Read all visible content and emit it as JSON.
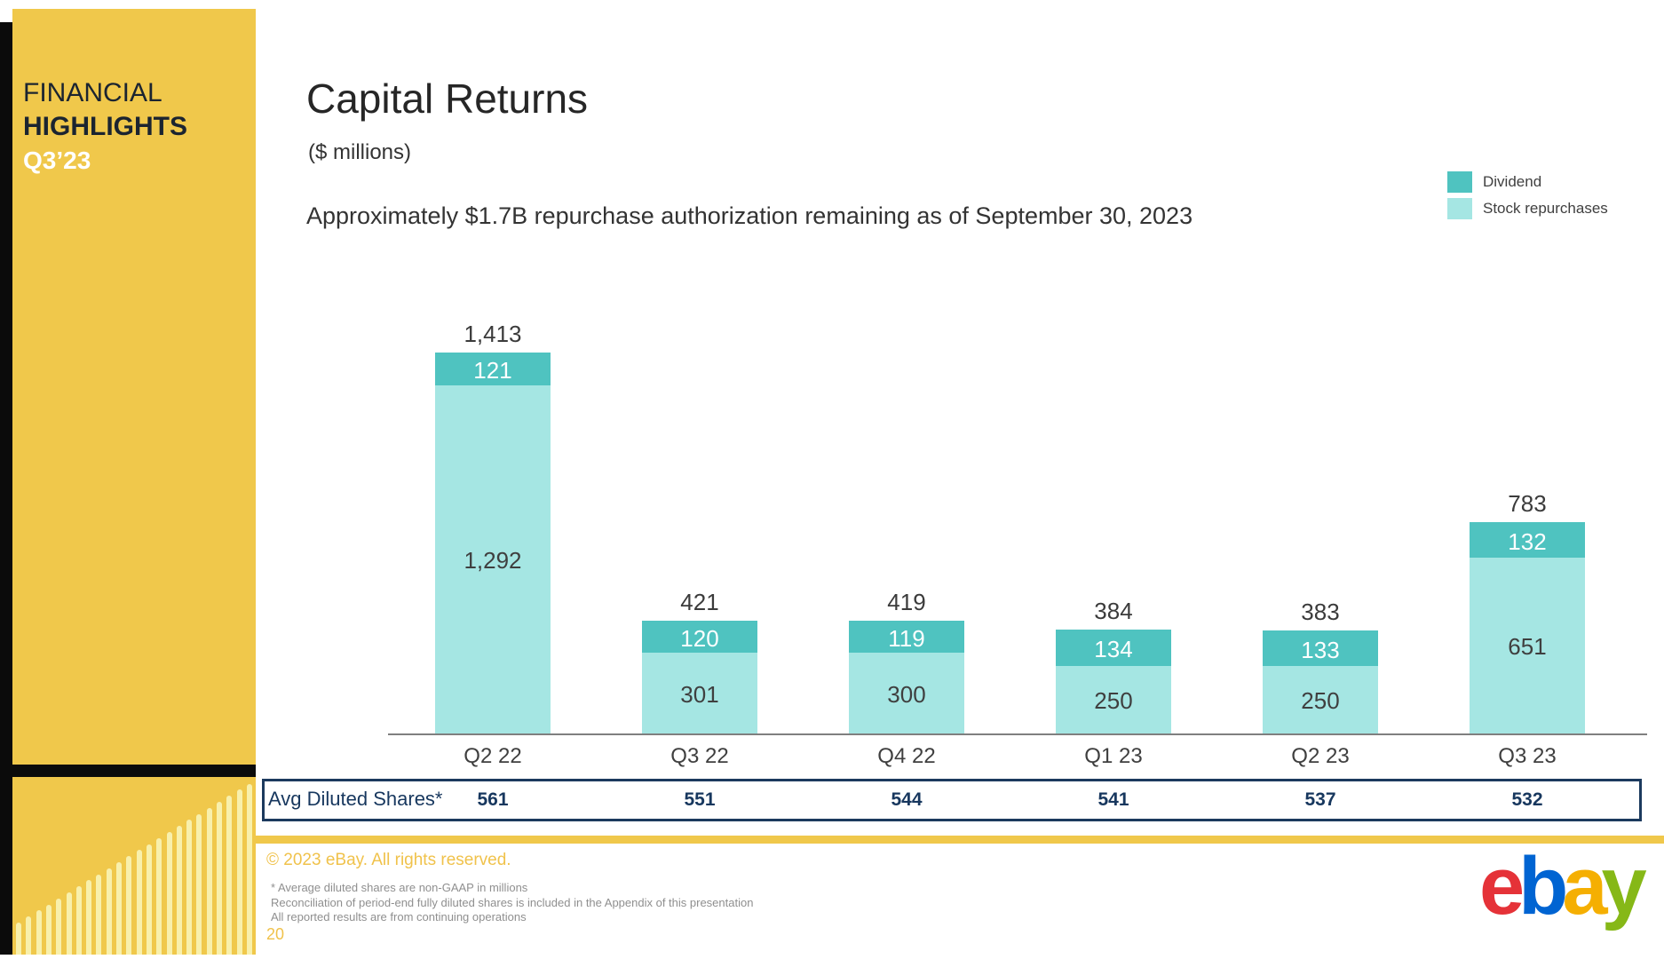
{
  "sidebar": {
    "line1": "FINANCIAL",
    "line2": "HIGHLIGHTS",
    "line3": "Q3’23"
  },
  "header": {
    "title": "Capital Returns",
    "units": "($ millions)",
    "note": "Approximately $1.7B repurchase authorization remaining as of September 30, 2023"
  },
  "legend": [
    {
      "label": "Dividend",
      "color": "#4FC3C0"
    },
    {
      "label": "Stock repurchases",
      "color": "#A5E6E3"
    }
  ],
  "chart_data": {
    "type": "bar",
    "stacked": true,
    "title": "Capital Returns ($ millions)",
    "categories": [
      "Q2 22",
      "Q3 22",
      "Q4 22",
      "Q1 23",
      "Q2 23",
      "Q3 23"
    ],
    "series": [
      {
        "name": "Dividend",
        "color": "#4FC3C0",
        "values": [
          121,
          120,
          119,
          134,
          133,
          132
        ]
      },
      {
        "name": "Stock repurchases",
        "color": "#A5E6E3",
        "values": [
          1292,
          301,
          300,
          250,
          250,
          651
        ]
      }
    ],
    "totals": [
      1413,
      421,
      419,
      384,
      383,
      783
    ],
    "ylim": [
      0,
      1500
    ],
    "grid": false,
    "legend_position": "top-right"
  },
  "shares_table": {
    "label": "Avg Diluted Shares*",
    "values": [
      "561",
      "551",
      "544",
      "541",
      "537",
      "532"
    ]
  },
  "footer": {
    "copyright": "© 2023 eBay. All rights reserved.",
    "notes": [
      "* Average diluted shares are non-GAAP in millions",
      "Reconciliation of period-end fully diluted shares is included in the Appendix of this presentation",
      "All reported results are from continuing operations"
    ],
    "page_number": "20",
    "logo_letters": [
      {
        "char": "e",
        "color": "#E53238"
      },
      {
        "char": "b",
        "color": "#0064D2"
      },
      {
        "char": "a",
        "color": "#F5AF02"
      },
      {
        "char": "y",
        "color": "#86B817"
      }
    ]
  },
  "colors": {
    "sidebar_yellow": "#F0C84B",
    "sidebar_pattern": "#F8F0AC",
    "dividend_teal": "#4FC3C0",
    "repurchase_teal": "#A5E6E3",
    "table_navy": "#17375E",
    "footer_gold": "#F0C24B"
  }
}
